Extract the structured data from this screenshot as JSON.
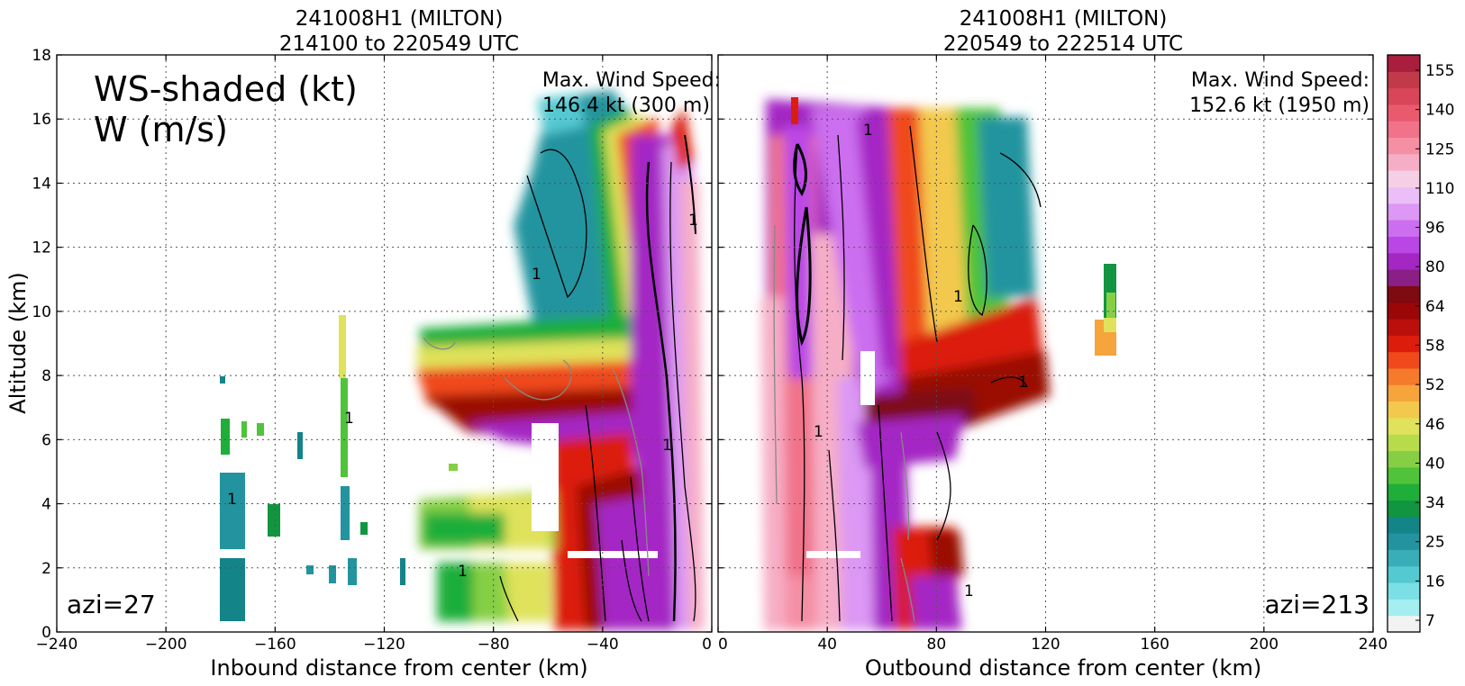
{
  "chart_data": [
    {
      "type": "heatmap",
      "title_line1": "241008H1 (MILTON)",
      "title_line2": "214100 to 220549 UTC",
      "xlabel": "Inbound distance from center (km)",
      "ylabel": "Altitude (km)",
      "xlim": [
        -240,
        0
      ],
      "ylim": [
        0,
        18
      ],
      "xticks": [
        -240,
        -200,
        -160,
        -120,
        -80,
        -40,
        0
      ],
      "xtick_labels": [
        "−240",
        "−200",
        "−160",
        "−120",
        "−80",
        "−40",
        "0"
      ],
      "yticks": [
        0,
        2,
        4,
        6,
        8,
        10,
        12,
        14,
        16,
        18
      ],
      "grid": true,
      "overlay_label_1": "WS-shaded (kt)",
      "overlay_label_2": "W (m/s)",
      "max_wind_line1": "Max. Wind Speed:",
      "max_wind_line2": "146.4 kt (300 m)",
      "max_wind_speed_kt": 146.4,
      "max_wind_height_m": 300,
      "azimuth_label": "azi=27",
      "azimuth": 27,
      "contour_label": "1"
    },
    {
      "type": "heatmap",
      "title_line1": "241008H1 (MILTON)",
      "title_line2": "220549 to 222514 UTC",
      "xlabel": "Outbound distance from center (km)",
      "xlim": [
        0,
        240
      ],
      "ylim": [
        0,
        18
      ],
      "xticks": [
        0,
        40,
        80,
        120,
        160,
        200,
        240
      ],
      "xtick_labels": [
        "0",
        "40",
        "80",
        "120",
        "160",
        "200",
        "240"
      ],
      "yticks": [
        0,
        2,
        4,
        6,
        8,
        10,
        12,
        14,
        16,
        18
      ],
      "grid": true,
      "max_wind_line1": "Max. Wind Speed:",
      "max_wind_line2": "152.6 kt (1950 m)",
      "max_wind_speed_kt": 152.6,
      "max_wind_height_m": 1950,
      "azimuth_label": "azi=213",
      "azimuth": 213,
      "contour_label": "1"
    }
  ],
  "colorbar": {
    "labels": [
      "155",
      "140",
      "125",
      "110",
      "96",
      "80",
      "64",
      "58",
      "52",
      "46",
      "40",
      "34",
      "25",
      "16",
      "7"
    ],
    "colors": [
      "#f2f2f2",
      "#a4eef0",
      "#7ae0e6",
      "#55c9d2",
      "#3aaeb8",
      "#23949f",
      "#138488",
      "#129540",
      "#1fae3a",
      "#4fc33a",
      "#86cf45",
      "#b6dc4c",
      "#dfe25a",
      "#f3c94d",
      "#f6a43c",
      "#f57a2c",
      "#f04a1c",
      "#dc1d0c",
      "#bb0f0c",
      "#9a0706",
      "#7e0a12",
      "#8a1f86",
      "#a427c4",
      "#bb46e6",
      "#cc6ef0",
      "#dc98f4",
      "#ebbef8",
      "#f5cfe6",
      "#f6aec6",
      "#f48fa4",
      "#f0738a",
      "#ea5a6f",
      "#d94559",
      "#c23a4a",
      "#a81e3c"
    ]
  }
}
